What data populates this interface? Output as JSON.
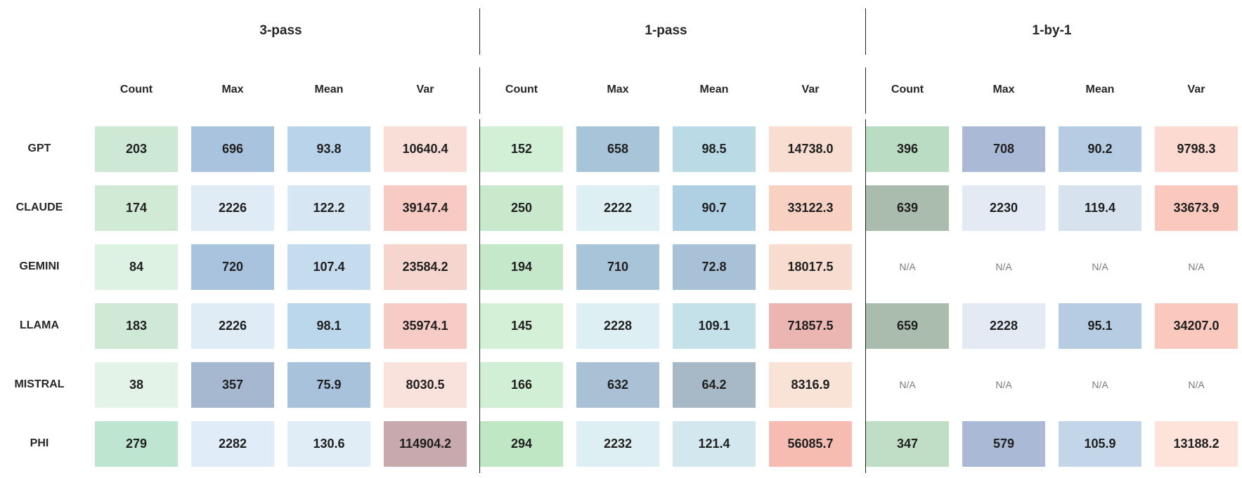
{
  "chart_data": {
    "type": "table",
    "title": "",
    "groups": [
      "3-pass",
      "1-pass",
      "1-by-1"
    ],
    "metrics": [
      "Count",
      "Max",
      "Mean",
      "Var"
    ],
    "rows": [
      "GPT",
      "CLAUDE",
      "GEMINI",
      "LLAMA",
      "MISTRAL",
      "PHI"
    ],
    "na_label": "N/A",
    "values": {
      "3-pass": {
        "Count": [
          "203",
          "174",
          "84",
          "183",
          "38",
          "279"
        ],
        "Max": [
          "696",
          "2226",
          "720",
          "2226",
          "357",
          "2282"
        ],
        "Mean": [
          "93.8",
          "122.2",
          "107.4",
          "98.1",
          "75.9",
          "130.6"
        ],
        "Var": [
          "10640.4",
          "39147.4",
          "23584.2",
          "35974.1",
          "8030.5",
          "114904.2"
        ]
      },
      "1-pass": {
        "Count": [
          "152",
          "250",
          "194",
          "145",
          "166",
          "294"
        ],
        "Max": [
          "658",
          "2222",
          "710",
          "2228",
          "632",
          "2232"
        ],
        "Mean": [
          "98.5",
          "90.7",
          "72.8",
          "109.1",
          "64.2",
          "121.4"
        ],
        "Var": [
          "14738.0",
          "33122.3",
          "18017.5",
          "71857.5",
          "8316.9",
          "56085.7"
        ]
      },
      "1-by-1": {
        "Count": [
          "396",
          "639",
          null,
          "659",
          null,
          "347"
        ],
        "Max": [
          "708",
          "2230",
          null,
          "2228",
          null,
          "579"
        ],
        "Mean": [
          "90.2",
          "119.4",
          null,
          "95.1",
          null,
          "105.9"
        ],
        "Var": [
          "9798.3",
          "33673.9",
          null,
          "34207.0",
          null,
          "13188.2"
        ]
      }
    },
    "colors": {
      "3-pass": {
        "Count": [
          "#cde9d5",
          "#d0ead5",
          "#def2e4",
          "#d0e9d6",
          "#e3f3e8",
          "#bee5cf"
        ],
        "Max": [
          "#a9c3de",
          "#dfebf5",
          "#a9c3de",
          "#dfebf5",
          "#a6b8cf",
          "#e0ecf7"
        ],
        "Mean": [
          "#b8d3ea",
          "#d6e7f3",
          "#c5dcef",
          "#bbd7ec",
          "#a9c2dc",
          "#e0edf7"
        ],
        "Var": [
          "#f8ded6",
          "#f7cac4",
          "#f7d5cf",
          "#f7cbc6",
          "#f9e2dc",
          "#c8a9ae"
        ]
      },
      "1-pass": {
        "Count": [
          "#d2f0d5",
          "#c9e9cc",
          "#c6e8ca",
          "#d4f0d7",
          "#d1efd5",
          "#c0e7c4"
        ],
        "Max": [
          "#a8c4d8",
          "#deeff3",
          "#a8c4d8",
          "#deeff3",
          "#a9c0d5",
          "#deeff3"
        ],
        "Mean": [
          "#badae5",
          "#afd0e2",
          "#a9c1d6",
          "#c4e0e9",
          "#a7b8c6",
          "#d2e8ee"
        ],
        "Var": [
          "#f8ddd0",
          "#f8d1c3",
          "#f8dccf",
          "#ebb5b1",
          "#f9e3d6",
          "#f6bcb2"
        ]
      },
      "1-by-1": {
        "Count": [
          "#badcc3",
          "#a9bcad",
          null,
          "#a9bcad",
          null,
          "#c0ddc5"
        ],
        "Max": [
          "#a9b9d6",
          "#e3eaf4",
          null,
          "#e3eaf4",
          null,
          "#a9b9d6"
        ],
        "Mean": [
          "#b6cce3",
          "#d6e2ee",
          null,
          "#b6cce3",
          null,
          "#c3d6e9"
        ],
        "Var": [
          "#fcdad1",
          "#fbc8bd",
          null,
          "#fbc8bd",
          null,
          "#fde3da"
        ]
      }
    }
  }
}
